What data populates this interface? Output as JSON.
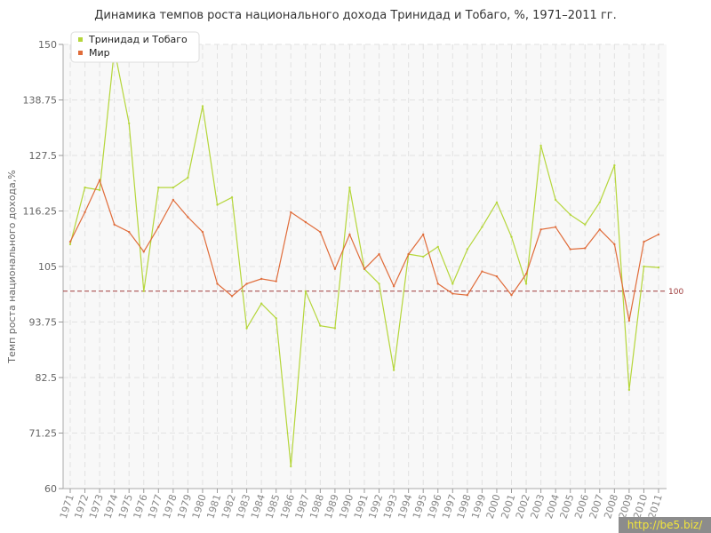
{
  "chart_data": {
    "type": "line",
    "title": "Динамика темпов роста национального дохода Тринидад и Тобаго, %, 1971–2011 гг.",
    "xlabel": "",
    "ylabel": "Темп роста национального дохода,%",
    "ylim": [
      60,
      150
    ],
    "yticks": [
      "60",
      "71.25",
      "82.5",
      "93.75",
      "105",
      "116.25",
      "127.5",
      "138.75",
      "150"
    ],
    "x": [
      "1971",
      "1972",
      "1973",
      "1974",
      "1975",
      "1976",
      "1977",
      "1978",
      "1979",
      "1980",
      "1981",
      "1982",
      "1983",
      "1984",
      "1985",
      "1986",
      "1987",
      "1988",
      "1989",
      "1990",
      "1991",
      "1992",
      "1993",
      "1994",
      "1995",
      "1996",
      "1997",
      "1998",
      "1999",
      "2000",
      "2001",
      "2002",
      "2003",
      "2004",
      "2005",
      "2006",
      "2007",
      "2008",
      "2009",
      "2010",
      "2011"
    ],
    "series": [
      {
        "name": "Тринидад и Тобаго",
        "color": "#b5d63a",
        "values": [
          109.5,
          121.0,
          120.5,
          149.0,
          134.0,
          100.0,
          121.0,
          121.0,
          123.0,
          137.5,
          117.5,
          119.0,
          92.5,
          97.5,
          94.5,
          64.5,
          100.0,
          93.0,
          92.5,
          121.0,
          104.5,
          101.5,
          84.0,
          107.5,
          107.0,
          109.0,
          101.5,
          108.5,
          113.0,
          118.0,
          111.0,
          101.5,
          129.5,
          118.5,
          115.5,
          113.5,
          118.0,
          125.5,
          80.0,
          105.0,
          104.8
        ]
      },
      {
        "name": "Мир",
        "color": "#e06c3a",
        "values": [
          110.0,
          116.0,
          122.5,
          113.5,
          112.0,
          108.0,
          113.0,
          118.5,
          115.0,
          112.0,
          101.5,
          99.0,
          101.5,
          102.5,
          102.0,
          116.0,
          114.0,
          112.0,
          104.5,
          111.5,
          104.5,
          107.5,
          101.0,
          107.5,
          111.5,
          101.5,
          99.5,
          99.2,
          104.0,
          103.0,
          99.2,
          103.5,
          112.5,
          113.0,
          108.5,
          108.7,
          112.5,
          109.5,
          94.0,
          110.0,
          111.5
        ]
      }
    ],
    "reference_line": {
      "value": 100,
      "label": "100",
      "color": "#9e3b3b"
    },
    "legend": {
      "placement": "top-left"
    },
    "grid": true
  },
  "watermark": "http://be5.biz/"
}
